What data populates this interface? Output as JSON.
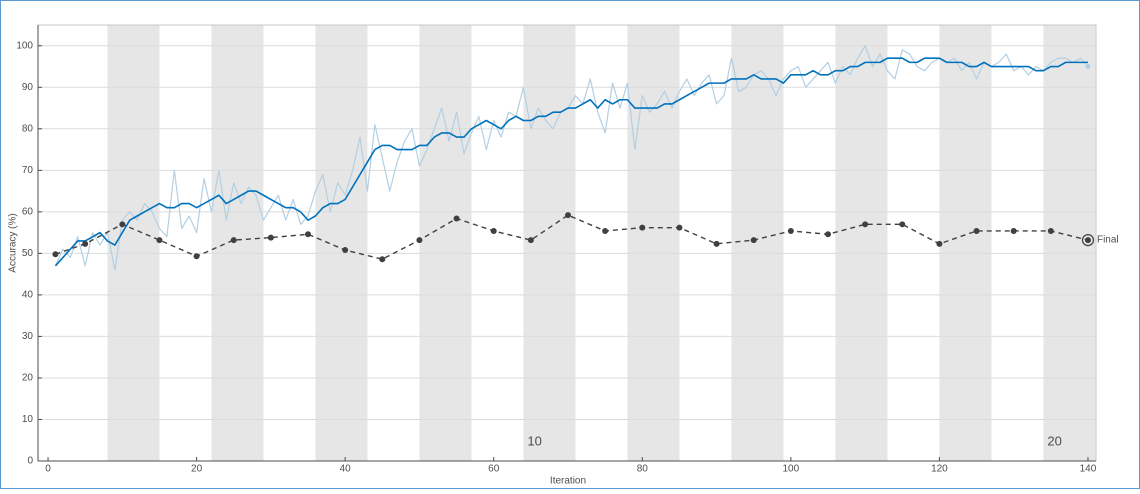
{
  "chart_data": {
    "type": "line",
    "xlabel": "Iteration",
    "ylabel": "Accuracy (%)",
    "xlim": [
      -1.35,
      141.08
    ],
    "ylim": [
      0,
      105
    ],
    "xticks": [
      0,
      20,
      40,
      60,
      80,
      100,
      120,
      140
    ],
    "yticks": [
      0,
      10,
      20,
      30,
      40,
      50,
      60,
      70,
      80,
      90,
      100
    ],
    "grid": true,
    "band_color": "#e6e6e6",
    "epoch_edges": [
      1,
      8,
      15,
      22,
      29,
      36,
      43,
      50,
      57,
      64,
      71,
      78,
      85,
      92,
      99,
      106,
      113,
      120,
      127,
      134,
      141
    ],
    "epoch_labels": [
      10,
      20
    ],
    "x": [
      1,
      2,
      3,
      4,
      5,
      6,
      7,
      8,
      9,
      10,
      11,
      12,
      13,
      14,
      15,
      16,
      17,
      18,
      19,
      20,
      21,
      22,
      23,
      24,
      25,
      26,
      27,
      28,
      29,
      30,
      31,
      32,
      33,
      34,
      35,
      36,
      37,
      38,
      39,
      40,
      41,
      42,
      43,
      44,
      45,
      46,
      47,
      48,
      49,
      50,
      51,
      52,
      53,
      54,
      55,
      56,
      57,
      58,
      59,
      60,
      61,
      62,
      63,
      64,
      65,
      66,
      67,
      68,
      69,
      70,
      71,
      72,
      73,
      74,
      75,
      76,
      77,
      78,
      79,
      80,
      81,
      82,
      83,
      84,
      85,
      86,
      87,
      88,
      89,
      90,
      91,
      92,
      93,
      94,
      95,
      96,
      97,
      98,
      99,
      100,
      101,
      102,
      103,
      104,
      105,
      106,
      107,
      108,
      109,
      110,
      111,
      112,
      113,
      114,
      115,
      116,
      117,
      118,
      119,
      120,
      121,
      122,
      123,
      124,
      125,
      126,
      127,
      128,
      129,
      130,
      131,
      132,
      133,
      134,
      135,
      136,
      137,
      138,
      139,
      140
    ],
    "series": [
      {
        "color": "#b3cfe3",
        "width": 1.2,
        "values": [
          47,
          51,
          49,
          54,
          47,
          55,
          52,
          55,
          46,
          58,
          60,
          58,
          62,
          60,
          56,
          54,
          70,
          56,
          59,
          55,
          68,
          60,
          70,
          58,
          67,
          62,
          66,
          64,
          58,
          61,
          64,
          58,
          63,
          57,
          59,
          65,
          69,
          60,
          67,
          64,
          70,
          78,
          65,
          81,
          73,
          65,
          72,
          77,
          80,
          71,
          75,
          80,
          85,
          77,
          84,
          74,
          79,
          83,
          75,
          82,
          78,
          84,
          83,
          90,
          80,
          85,
          82,
          80,
          84,
          85,
          88,
          86,
          92,
          84,
          79,
          91,
          85,
          91,
          75,
          88,
          84,
          86,
          89,
          85,
          89,
          92,
          88,
          91,
          93,
          86,
          88,
          97,
          89,
          90,
          93,
          94,
          92,
          88,
          92,
          94,
          95,
          90,
          92,
          94,
          96,
          91,
          95,
          93,
          97,
          100,
          95,
          98,
          94,
          92,
          99,
          98,
          95,
          94,
          96,
          97,
          96,
          97,
          94,
          96,
          92,
          96,
          95,
          96,
          98,
          94,
          95,
          93,
          95,
          94,
          96,
          97,
          97,
          96,
          97,
          95
        ]
      },
      {
        "color": "#0072bd",
        "width": 1.6,
        "values": [
          47,
          49,
          51,
          53,
          53,
          54,
          55,
          53,
          52,
          55,
          58,
          59,
          60,
          61,
          62,
          61,
          61,
          62,
          62,
          61,
          62,
          63,
          64,
          62,
          63,
          64,
          65,
          65,
          64,
          63,
          62,
          61,
          61,
          60,
          58,
          59,
          61,
          62,
          62,
          63,
          66,
          69,
          72,
          75,
          76,
          76,
          75,
          75,
          75,
          76,
          76,
          78,
          79,
          79,
          78,
          78,
          80,
          81,
          82,
          81,
          80,
          82,
          83,
          82,
          82,
          83,
          83,
          84,
          84,
          85,
          85,
          86,
          87,
          85,
          87,
          86,
          87,
          87,
          85,
          85,
          85,
          85,
          86,
          86,
          87,
          88,
          89,
          90,
          91,
          91,
          91,
          92,
          92,
          92,
          93,
          92,
          92,
          92,
          91,
          93,
          93,
          93,
          94,
          93,
          93,
          94,
          94,
          95,
          95,
          96,
          96,
          96,
          97,
          97,
          97,
          96,
          96,
          97,
          97,
          97,
          96,
          96,
          96,
          95,
          95,
          96,
          95,
          95,
          95,
          95,
          95,
          95,
          94,
          94,
          95,
          95,
          96,
          96,
          96,
          96
        ]
      },
      {
        "color": "#404040",
        "width": 1.4,
        "style": "dashed",
        "x": [
          1,
          5,
          10,
          15,
          20,
          25,
          30,
          35,
          40,
          45,
          50,
          55,
          60,
          65,
          70,
          75,
          80,
          85,
          90,
          95,
          100,
          105,
          110,
          115,
          120,
          125,
          130,
          135,
          140
        ],
        "values": [
          49.8,
          52.3,
          57,
          53.2,
          49.3,
          53.2,
          53.8,
          54.6,
          50.8,
          48.6,
          53.2,
          58.4,
          55.4,
          53.2,
          59.2,
          55.4,
          56.2,
          56.2,
          52.3,
          53.2,
          55.4,
          54.6,
          57,
          57,
          52.3,
          55.4,
          55.4,
          55.4,
          53.2
        ]
      }
    ],
    "final_label": "Final"
  }
}
